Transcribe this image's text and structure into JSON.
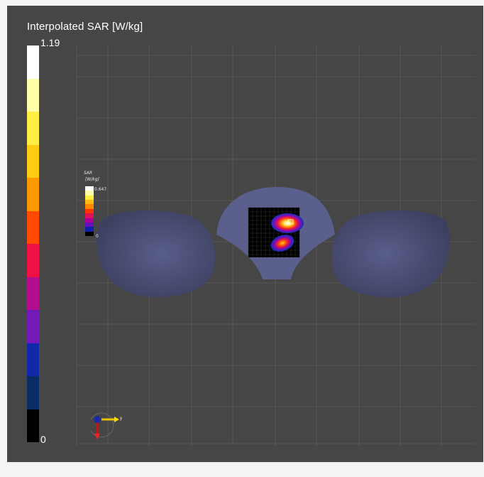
{
  "viewer": {
    "legend": {
      "title": "Interpolated SAR [W/kg]",
      "max_label": "1.19",
      "min_label": "0",
      "colors": [
        "#ffffff",
        "#ffffaa",
        "#ffef44",
        "#ffcc11",
        "#ff9900",
        "#ff4a00",
        "#ee1144",
        "#b00d8f",
        "#7319b7",
        "#1029a8",
        "#0b2d66",
        "#000000"
      ]
    },
    "mini_legend": {
      "title": "SAR",
      "unit": "[W/kg]",
      "max_label": "0.647",
      "min_label": "0",
      "colors": [
        "#ffffff",
        "#ffffaa",
        "#ffee44",
        "#ffbb11",
        "#ff8800",
        "#ff3300",
        "#dd1155",
        "#aa0099",
        "#6611bb",
        "#1122aa",
        "#000000"
      ]
    },
    "axis_indicator": {
      "label": "y"
    },
    "background_color": "#464646"
  }
}
